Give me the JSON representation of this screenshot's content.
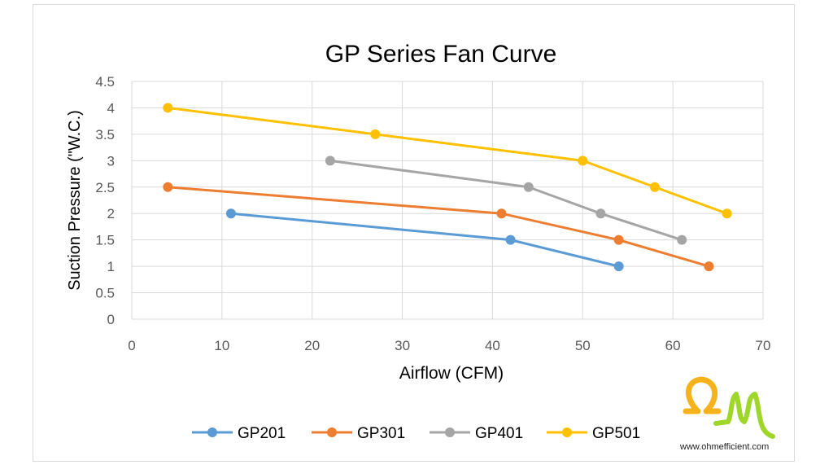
{
  "chart_data": {
    "type": "line",
    "title": "GP Series Fan Curve",
    "xlabel": "Airflow (CFM)",
    "ylabel": "Suction Pressure (\"W.C.)",
    "xlim": [
      0,
      70
    ],
    "ylim": [
      0,
      4.5
    ],
    "xticks": [
      "0",
      "10",
      "20",
      "30",
      "40",
      "50",
      "60",
      "70"
    ],
    "yticks": [
      "0",
      "0.5",
      "1",
      "1.5",
      "2",
      "2.5",
      "3",
      "3.5",
      "4",
      "4.5"
    ],
    "grid": true,
    "legend_position": "bottom",
    "series": [
      {
        "name": "GP201",
        "color": "#5b9bd5",
        "x": [
          11,
          42,
          54
        ],
        "y": [
          2,
          1.5,
          1
        ]
      },
      {
        "name": "GP301",
        "color": "#ed7d31",
        "x": [
          4,
          41,
          54,
          64
        ],
        "y": [
          2.5,
          2,
          1.5,
          1
        ]
      },
      {
        "name": "GP401",
        "color": "#a5a5a5",
        "x": [
          22,
          44,
          52,
          61
        ],
        "y": [
          3,
          2.5,
          2,
          1.5
        ]
      },
      {
        "name": "GP501",
        "color": "#ffc000",
        "x": [
          4,
          27,
          50,
          58,
          66
        ],
        "y": [
          4,
          3.5,
          3,
          2.5,
          2
        ]
      }
    ]
  },
  "logo": {
    "url_text": "www.ohmefficient.com",
    "colors": {
      "omega": "#f5b21b",
      "m": "#9ed62a"
    }
  }
}
